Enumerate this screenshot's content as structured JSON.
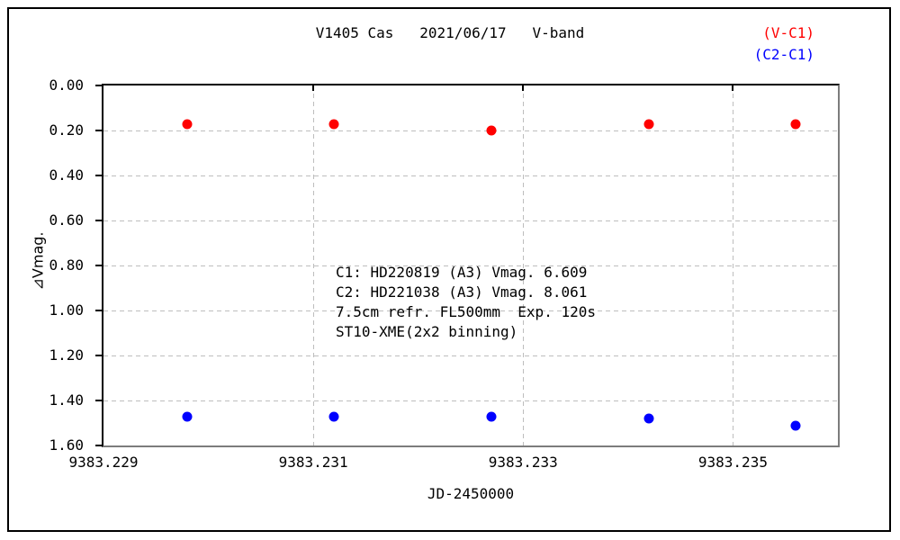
{
  "title": "V1405 Cas   2021/06/17   V-band",
  "annotation": {
    "lines": [
      "C1: HD220819 (A3) Vmag. 6.609",
      "C2: HD221038 (A3) Vmag. 8.061",
      "7.5cm refr. FL500mm  Exp. 120s",
      "ST10-XME(2x2 binning)"
    ]
  },
  "chart_data": {
    "type": "scatter",
    "title": "V1405 Cas 2021/06/17 V-band",
    "xlabel": "JD-2450000",
    "ylabel": "⊿Vmag.",
    "xlim": [
      9383.229,
      9383.236
    ],
    "ylim": [
      0.0,
      1.6
    ],
    "y_axis_inverted": true,
    "grid": "dashed",
    "legend_position": "top-right",
    "x_ticks": [
      {
        "label": "9383.229",
        "value": 9383.229
      },
      {
        "label": "9383.231",
        "value": 9383.231
      },
      {
        "label": "9383.233",
        "value": 9383.233
      },
      {
        "label": "9383.235",
        "value": 9383.235
      }
    ],
    "y_ticks": [
      {
        "label": "0.00",
        "value": 0.0
      },
      {
        "label": "0.20",
        "value": 0.2
      },
      {
        "label": "0.40",
        "value": 0.4
      },
      {
        "label": "0.60",
        "value": 0.6
      },
      {
        "label": "0.80",
        "value": 0.8
      },
      {
        "label": "1.00",
        "value": 1.0
      },
      {
        "label": "1.20",
        "value": 1.2
      },
      {
        "label": "1.40",
        "value": 1.4
      },
      {
        "label": "1.60",
        "value": 1.6
      }
    ],
    "series": [
      {
        "name": "(V-C1)",
        "color": "#ff0000",
        "x": [
          9383.2298,
          9383.2312,
          9383.2327,
          9383.2342,
          9383.2356
        ],
        "y": [
          0.17,
          0.17,
          0.2,
          0.17,
          0.17
        ]
      },
      {
        "name": "(C2-C1)",
        "color": "#0000ff",
        "x": [
          9383.2298,
          9383.2312,
          9383.2327,
          9383.2342,
          9383.2356
        ],
        "y": [
          1.47,
          1.47,
          1.47,
          1.48,
          1.51
        ]
      }
    ]
  }
}
